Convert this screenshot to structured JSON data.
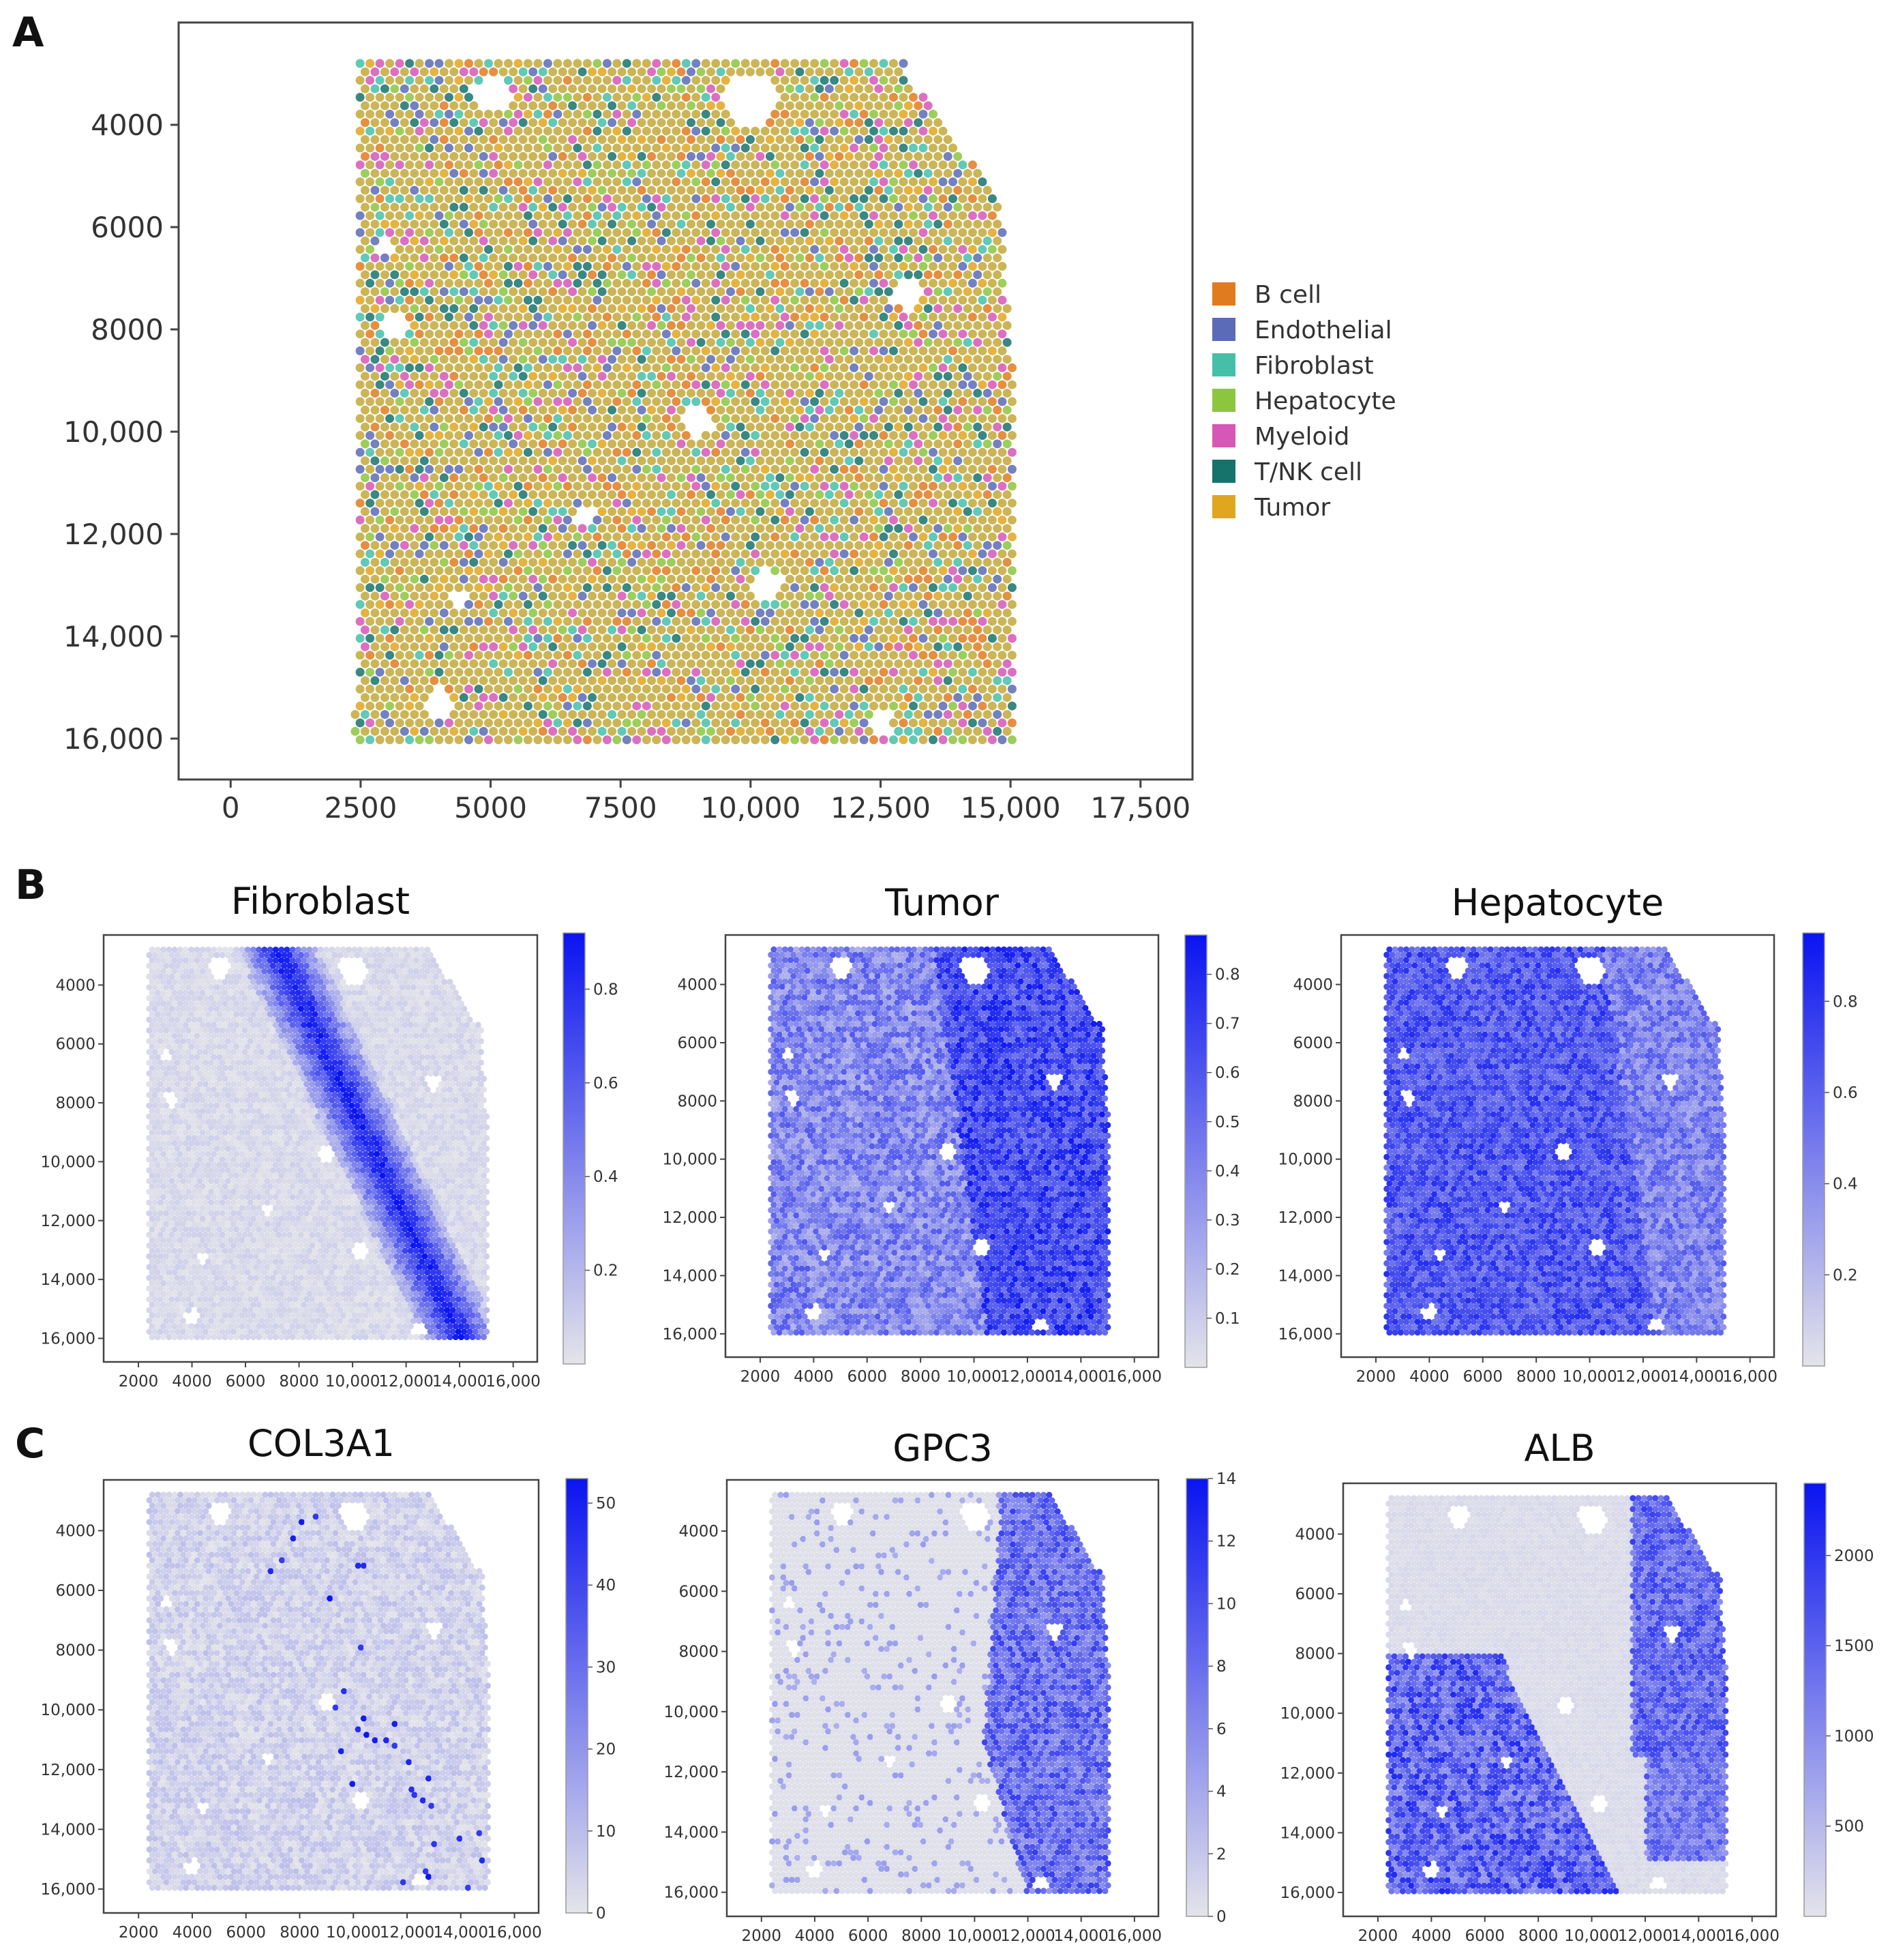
{
  "colors": {
    "frame": "#444444",
    "gradient_low": "#e4e4ea",
    "gradient_high": "#0a14f0",
    "spot_base": "#c2a83a"
  },
  "panel_labels": [
    "A",
    "B",
    "C"
  ],
  "chart_data": [
    {
      "panel": "A",
      "type": "scatter",
      "title": "",
      "xlabel": "",
      "ylabel": "",
      "xlim": [
        -1000,
        18500
      ],
      "ylim": [
        2000,
        16800
      ],
      "y_inverted": true,
      "x_ticks": [
        0,
        2500,
        5000,
        7500,
        10000,
        12500,
        15000,
        17500
      ],
      "x_tick_labels": [
        "0",
        "2500",
        "5000",
        "7500",
        "10,000",
        "12,500",
        "15,000",
        "17,500"
      ],
      "y_ticks": [
        4000,
        6000,
        8000,
        10000,
        12000,
        14000,
        16000
      ],
      "y_tick_labels": [
        "4000",
        "6000",
        "8000",
        "10,000",
        "12,000",
        "14,000",
        "16,000"
      ],
      "tissue_extent": {
        "x": [
          2300,
          15200
        ],
        "y": [
          2800,
          16100
        ]
      },
      "legend": {
        "position": "right",
        "entries": [
          {
            "label": "B cell",
            "color": "#e07b1f"
          },
          {
            "label": "Endothelial",
            "color": "#5b6bb5"
          },
          {
            "label": "Fibroblast",
            "color": "#45bfa8"
          },
          {
            "label": "Hepatocyte",
            "color": "#8cc63f"
          },
          {
            "label": "Myeloid",
            "color": "#d657b5"
          },
          {
            "label": "T/NK cell",
            "color": "#16736b"
          },
          {
            "label": "Tumor",
            "color": "#e0a61f"
          }
        ]
      }
    },
    {
      "panel": "B",
      "type": "heatmap",
      "title": "Fibroblast",
      "xlim": [
        700,
        16900
      ],
      "ylim": [
        2300,
        16800
      ],
      "y_inverted": true,
      "x_ticks": [
        2000,
        4000,
        6000,
        8000,
        10000,
        12000,
        14000,
        16000
      ],
      "x_tick_labels": [
        "2000",
        "4000",
        "6000",
        "8000",
        "10,000",
        "12,000",
        "14,000",
        "16,000"
      ],
      "y_ticks": [
        4000,
        6000,
        8000,
        10000,
        12000,
        14000,
        16000
      ],
      "y_tick_labels": [
        "4000",
        "6000",
        "8000",
        "10,000",
        "12,000",
        "14,000",
        "16,000"
      ],
      "color_range": [
        0,
        0.92
      ],
      "colorbar_ticks": [
        0.2,
        0.4,
        0.6,
        0.8
      ],
      "colorbar_tick_labels": [
        "0.2",
        "0.4",
        "0.6",
        "0.8"
      ],
      "pattern": "diagonal-band"
    },
    {
      "panel": "B",
      "type": "heatmap",
      "title": "Tumor",
      "xlim": [
        700,
        16900
      ],
      "ylim": [
        2300,
        16800
      ],
      "y_inverted": true,
      "x_ticks": [
        2000,
        4000,
        6000,
        8000,
        10000,
        12000,
        14000,
        16000
      ],
      "x_tick_labels": [
        "2000",
        "4000",
        "6000",
        "8000",
        "10,000",
        "12,000",
        "14,000",
        "16,000"
      ],
      "y_ticks": [
        4000,
        6000,
        8000,
        10000,
        12000,
        14000,
        16000
      ],
      "y_tick_labels": [
        "4000",
        "6000",
        "8000",
        "10,000",
        "12,000",
        "14,000",
        "16,000"
      ],
      "color_range": [
        0,
        0.88
      ],
      "colorbar_ticks": [
        0.1,
        0.2,
        0.3,
        0.4,
        0.5,
        0.6,
        0.7,
        0.8
      ],
      "colorbar_tick_labels": [
        "0.1",
        "0.2",
        "0.3",
        "0.4",
        "0.5",
        "0.6",
        "0.7",
        "0.8"
      ],
      "pattern": "right-high"
    },
    {
      "panel": "B",
      "type": "heatmap",
      "title": "Hepatocyte",
      "xlim": [
        700,
        16900
      ],
      "ylim": [
        2300,
        16800
      ],
      "y_inverted": true,
      "x_ticks": [
        2000,
        4000,
        6000,
        8000,
        10000,
        12000,
        14000,
        16000
      ],
      "x_tick_labels": [
        "2000",
        "4000",
        "6000",
        "8000",
        "10,000",
        "12,000",
        "14,000",
        "16,000"
      ],
      "y_ticks": [
        4000,
        6000,
        8000,
        10000,
        12000,
        14000,
        16000
      ],
      "y_tick_labels": [
        "4000",
        "6000",
        "8000",
        "10,000",
        "12,000",
        "14,000",
        "16,000"
      ],
      "color_range": [
        0,
        0.95
      ],
      "colorbar_ticks": [
        0.2,
        0.4,
        0.6,
        0.8
      ],
      "colorbar_tick_labels": [
        "0.2",
        "0.4",
        "0.6",
        "0.8"
      ],
      "pattern": "left-high"
    },
    {
      "panel": "C",
      "type": "heatmap",
      "title": "COL3A1",
      "xlim": [
        700,
        16900
      ],
      "ylim": [
        2300,
        16800
      ],
      "y_inverted": true,
      "x_ticks": [
        2000,
        4000,
        6000,
        8000,
        10000,
        12000,
        14000,
        16000
      ],
      "x_tick_labels": [
        "2000",
        "4000",
        "6000",
        "8000",
        "10,000",
        "12,000",
        "14,000",
        "16,000"
      ],
      "y_ticks": [
        4000,
        6000,
        8000,
        10000,
        12000,
        14000,
        16000
      ],
      "y_tick_labels": [
        "4000",
        "6000",
        "8000",
        "10,000",
        "12,000",
        "14,000",
        "16,000"
      ],
      "color_range": [
        0,
        53
      ],
      "colorbar_ticks": [
        0,
        10,
        20,
        30,
        40,
        50
      ],
      "colorbar_tick_labels": [
        "0",
        "10",
        "20",
        "30",
        "40",
        "50"
      ],
      "pattern": "sparse-band"
    },
    {
      "panel": "C",
      "type": "heatmap",
      "title": "GPC3",
      "xlim": [
        700,
        16900
      ],
      "ylim": [
        2300,
        16800
      ],
      "y_inverted": true,
      "x_ticks": [
        2000,
        4000,
        6000,
        8000,
        10000,
        12000,
        14000,
        16000
      ],
      "x_tick_labels": [
        "2000",
        "4000",
        "6000",
        "8000",
        "10,000",
        "12,000",
        "14,000",
        "16,000"
      ],
      "y_ticks": [
        4000,
        6000,
        8000,
        10000,
        12000,
        14000,
        16000
      ],
      "y_tick_labels": [
        "4000",
        "6000",
        "8000",
        "10,000",
        "12,000",
        "14,000",
        "16,000"
      ],
      "color_range": [
        0,
        14
      ],
      "colorbar_ticks": [
        0,
        2,
        4,
        6,
        8,
        10,
        12,
        14
      ],
      "colorbar_tick_labels": [
        "0",
        "2",
        "4",
        "6",
        "8",
        "10",
        "12",
        "14"
      ],
      "pattern": "upper-right"
    },
    {
      "panel": "C",
      "type": "heatmap",
      "title": "ALB",
      "xlim": [
        700,
        16900
      ],
      "ylim": [
        2300,
        16800
      ],
      "y_inverted": true,
      "x_ticks": [
        2000,
        4000,
        6000,
        8000,
        10000,
        12000,
        14000,
        16000
      ],
      "x_tick_labels": [
        "2000",
        "4000",
        "6000",
        "8000",
        "10,000",
        "12,000",
        "14,000",
        "16,000"
      ],
      "y_ticks": [
        4000,
        6000,
        8000,
        10000,
        12000,
        14000,
        16000
      ],
      "y_tick_labels": [
        "4000",
        "6000",
        "8000",
        "10,000",
        "12,000",
        "14,000",
        "16,000"
      ],
      "color_range": [
        0,
        2400
      ],
      "colorbar_ticks": [
        500,
        1000,
        1500,
        2000
      ],
      "colorbar_tick_labels": [
        "500",
        "1000",
        "1500",
        "2000"
      ],
      "pattern": "alb"
    }
  ]
}
